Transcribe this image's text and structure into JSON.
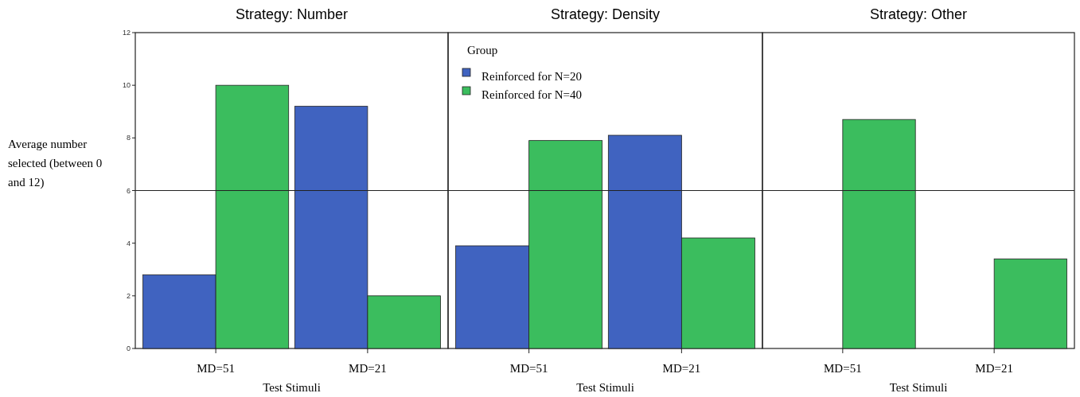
{
  "chart_data": [
    {
      "type": "bar",
      "title": "Strategy: Number",
      "xlabel": "Test Stimuli",
      "ylabel": "Average number selected (between 0 and 12)",
      "categories": [
        "MD=51",
        "MD=21"
      ],
      "series": [
        {
          "color": "#4063c0",
          "values": [
            2.8,
            9.2
          ]
        },
        {
          "color": "#3bbd5e",
          "values": [
            10.0,
            2.0
          ]
        }
      ],
      "ylim": [
        0,
        12
      ],
      "yticks": [
        0,
        2,
        4,
        6,
        8,
        10,
        12
      ],
      "ref_lines": [
        {
          "axis": "y",
          "value": 6
        }
      ]
    },
    {
      "type": "bar",
      "title": "Strategy: Density",
      "xlabel": "Test Stimuli",
      "categories": [
        "MD=51",
        "MD=21"
      ],
      "series": [
        {
          "name": "Reinforced for N=20",
          "color": "#4063c0",
          "values": [
            3.9,
            8.1
          ]
        },
        {
          "name": "Reinforced for N=40",
          "color": "#3bbd5e",
          "values": [
            7.9,
            4.2
          ]
        }
      ],
      "ylim": [
        0,
        12
      ],
      "tick_labels": "x",
      "legend": "top left",
      "legend_title": "Group",
      "ref_lines": [
        {
          "axis": "y",
          "value": 6
        }
      ]
    },
    {
      "type": "bar",
      "title": "Strategy: Other",
      "xlabel": "Test Stimuli",
      "categories": [
        "MD=51",
        "MD=21"
      ],
      "series": [
        {
          "color": "#4063c0",
          "values": [
            0,
            0
          ]
        },
        {
          "color": "#3bbd5e",
          "values": [
            8.7,
            3.4
          ]
        }
      ],
      "ylim": [
        0,
        12
      ],
      "tick_labels": "x",
      "ref_lines": [
        {
          "axis": "y",
          "value": 6
        }
      ]
    }
  ]
}
